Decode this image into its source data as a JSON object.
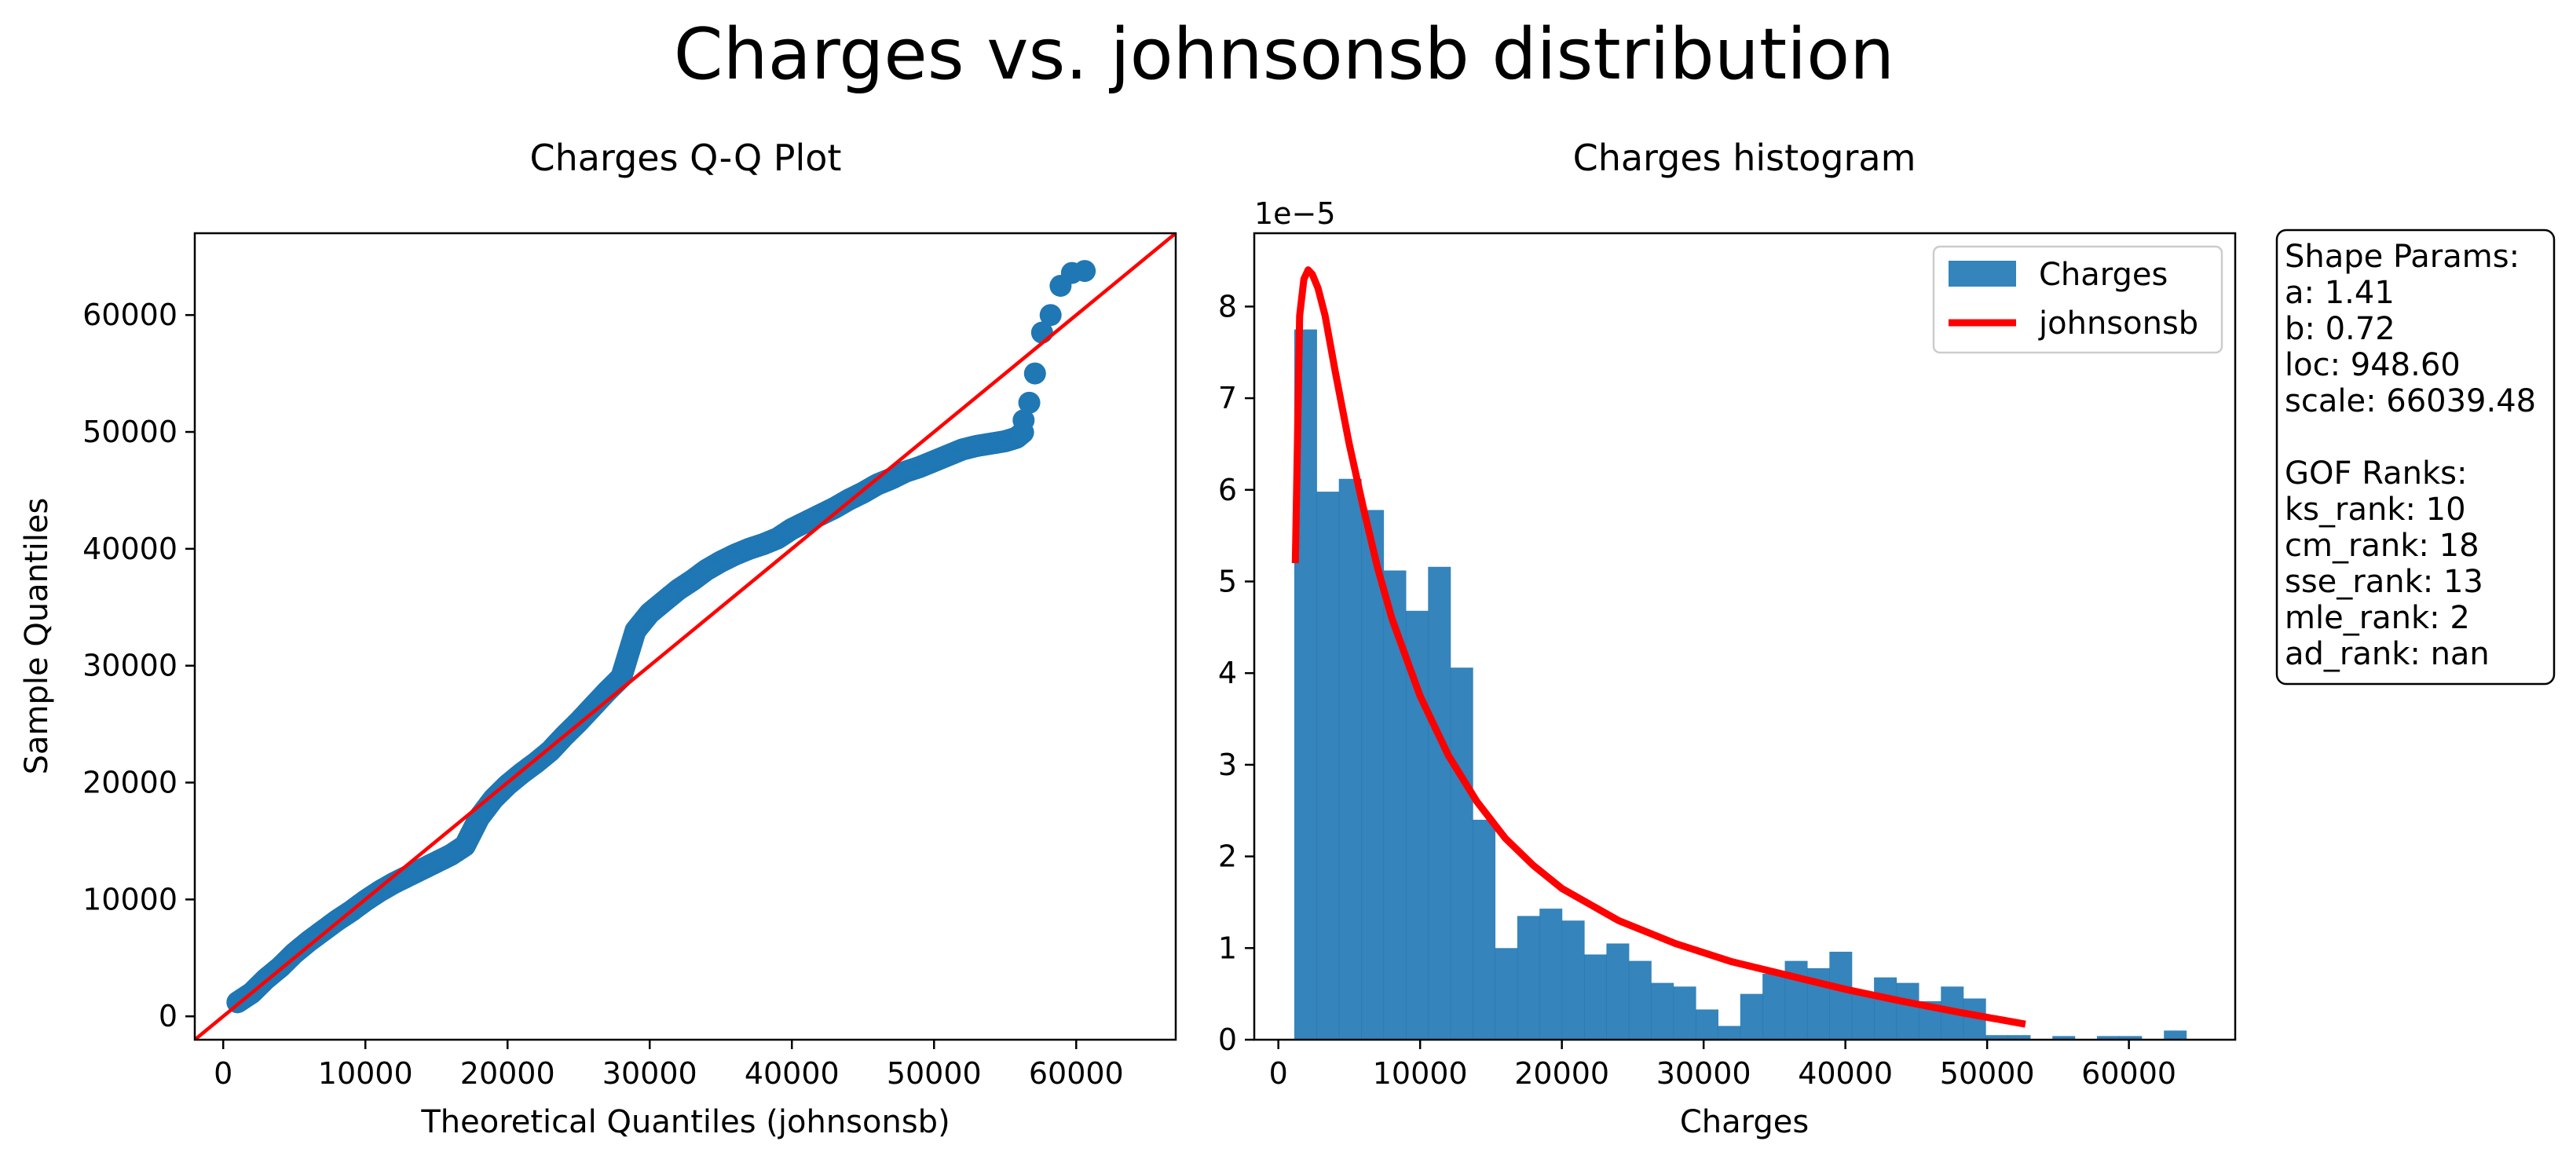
{
  "figure": {
    "title": "Charges vs. johnsonsb distribution"
  },
  "chart_data": [
    {
      "type": "scatter",
      "title": "Charges Q-Q Plot",
      "xlabel": "Theoretical Quantiles (johnsonsb)",
      "ylabel": "Sample Quantiles",
      "xlim": [
        -2000,
        67000
      ],
      "ylim": [
        -2000,
        67000
      ],
      "xticks": [
        0,
        10000,
        20000,
        30000,
        40000,
        50000,
        60000
      ],
      "yticks": [
        0,
        10000,
        20000,
        30000,
        40000,
        50000,
        60000
      ],
      "point_color": "#1f77b4",
      "line_color": "#ff0000",
      "reference_line": {
        "x": [
          -2000,
          67000
        ],
        "y": [
          -2000,
          67000
        ]
      },
      "qq_curve": {
        "x": [
          1000,
          2000,
          3000,
          4000,
          5000,
          6000,
          7000,
          8000,
          9000,
          10000,
          11000,
          12000,
          13000,
          14000,
          15000,
          16000,
          17000,
          18000,
          19000,
          20000,
          21000,
          22000,
          23000,
          24000,
          25000,
          26000,
          27000,
          28000,
          29000,
          30000,
          31000,
          32000,
          33000,
          34000,
          35000,
          36000,
          37000,
          38000,
          39000,
          40000,
          41000,
          42000,
          43000,
          44000,
          45000,
          46000,
          47000,
          48000,
          49000,
          50000,
          51000,
          52000,
          53000,
          54000,
          55000,
          55800,
          56300
        ],
        "y": [
          1200,
          2000,
          3200,
          4200,
          5400,
          6400,
          7300,
          8200,
          9000,
          9900,
          10700,
          11400,
          12000,
          12600,
          13200,
          13800,
          14600,
          17000,
          18600,
          19800,
          20800,
          21700,
          22700,
          24000,
          25200,
          26500,
          27800,
          29000,
          33000,
          34500,
          35500,
          36500,
          37300,
          38200,
          38900,
          39500,
          40000,
          40400,
          40900,
          41700,
          42300,
          42900,
          43500,
          44200,
          44800,
          45500,
          46000,
          46600,
          47000,
          47500,
          48000,
          48500,
          48800,
          49000,
          49200,
          49500,
          50000
        ]
      },
      "tail_points": {
        "x": [
          56300,
          56700,
          57100,
          57600,
          58200,
          58900,
          59700,
          60600
        ],
        "y": [
          51000,
          52500,
          55000,
          58500,
          60000,
          62500,
          63600,
          63770
        ]
      }
    },
    {
      "type": "bar",
      "title": "Charges histogram",
      "xlabel": "Charges",
      "ylabel": "",
      "y_scale_label": "1e−5",
      "xlim": [
        -1700,
        67500
      ],
      "ylim": [
        0,
        8.8
      ],
      "xticks": [
        0,
        10000,
        20000,
        30000,
        40000,
        50000,
        60000
      ],
      "yticks": [
        0,
        1,
        2,
        3,
        4,
        5,
        6,
        7,
        8
      ],
      "bar_color": "#1f77b4",
      "curve_color": "#ff0000",
      "bin_start": 1122,
      "bin_width": 1573,
      "values": [
        7.75,
        5.98,
        6.12,
        5.78,
        5.12,
        4.68,
        5.16,
        4.06,
        2.4,
        1.0,
        1.35,
        1.43,
        1.3,
        0.93,
        1.05,
        0.86,
        0.62,
        0.58,
        0.33,
        0.15,
        0.5,
        0.72,
        0.86,
        0.78,
        0.96,
        0.5,
        0.68,
        0.62,
        0.42,
        0.58,
        0.45,
        0.05,
        0.05,
        0.0,
        0.04,
        0.0,
        0.04,
        0.04,
        0.0,
        0.1
      ],
      "series": [
        {
          "name": "Charges"
        },
        {
          "name": "johnsonsb",
          "x": [
            1200,
            1500,
            1800,
            2100,
            2400,
            2800,
            3300,
            4000,
            5000,
            6000,
            7000,
            8000,
            10000,
            12000,
            14000,
            16000,
            18000,
            20000,
            24000,
            28000,
            32000,
            36000,
            40000,
            44000,
            48000,
            52700
          ],
          "y": [
            5.2,
            7.9,
            8.3,
            8.4,
            8.35,
            8.2,
            7.9,
            7.3,
            6.5,
            5.8,
            5.15,
            4.6,
            3.75,
            3.1,
            2.6,
            2.2,
            1.9,
            1.65,
            1.3,
            1.05,
            0.85,
            0.7,
            0.55,
            0.42,
            0.3,
            0.17
          ]
        }
      ],
      "legend": "upper right"
    }
  ],
  "stats_box": {
    "lines": [
      "Shape Params:",
      "a: 1.41",
      "b: 0.72",
      "loc: 948.60",
      "scale: 66039.48",
      "",
      "GOF Ranks:",
      "ks_rank: 10",
      "cm_rank: 18",
      "sse_rank: 13",
      "mle_rank: 2",
      "ad_rank: nan"
    ]
  }
}
